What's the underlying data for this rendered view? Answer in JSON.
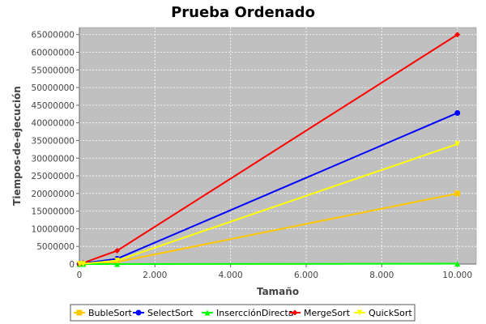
{
  "chart_data": {
    "type": "line",
    "title": "Prueba Ordenado",
    "xlabel": "Tamaño",
    "ylabel": "Tiempos-de-ejecución",
    "xlim": [
      0,
      10500
    ],
    "ylim": [
      0,
      67000000
    ],
    "xticks": [
      0,
      2000,
      4000,
      6000,
      8000,
      10000
    ],
    "xtick_labels": [
      "0",
      "2.000",
      "4.000",
      "6.000",
      "8.000",
      "10.000"
    ],
    "yticks": [
      0,
      5000000,
      10000000,
      15000000,
      20000000,
      25000000,
      30000000,
      35000000,
      40000000,
      45000000,
      50000000,
      55000000,
      60000000,
      65000000
    ],
    "ytick_labels": [
      "0",
      "5000000",
      "10000000",
      "15000000",
      "20000000",
      "25000000",
      "30000000",
      "35000000",
      "40000000",
      "45000000",
      "50000000",
      "55000000",
      "60000000",
      "65000000"
    ],
    "grid": true,
    "legend_position": "bottom",
    "background": "#c0c0c0",
    "series": [
      {
        "name": "BubleSort",
        "color": "#ffc800",
        "marker": "square",
        "x": [
          10,
          100,
          1000,
          10000
        ],
        "y": [
          5000,
          100000,
          600000,
          20000000
        ]
      },
      {
        "name": "SelectSort",
        "color": "#0000ff",
        "marker": "circle",
        "x": [
          10,
          100,
          1000,
          10000
        ],
        "y": [
          10000,
          200000,
          1500000,
          42800000
        ]
      },
      {
        "name": "InsercciónDirecta",
        "color": "#00ff00",
        "marker": "triangle-up",
        "x": [
          10,
          100,
          1000,
          10000
        ],
        "y": [
          0,
          0,
          10000,
          100000
        ]
      },
      {
        "name": "MergeSort",
        "color": "#ff0000",
        "marker": "diamond",
        "x": [
          10,
          100,
          1000,
          10000
        ],
        "y": [
          20000,
          300000,
          3800000,
          65000000
        ]
      },
      {
        "name": "QuickSort",
        "color": "#ffff00",
        "marker": "triangle-down",
        "x": [
          10,
          100,
          1000,
          10000
        ],
        "y": [
          10000,
          100000,
          1000000,
          34000000
        ]
      }
    ]
  }
}
